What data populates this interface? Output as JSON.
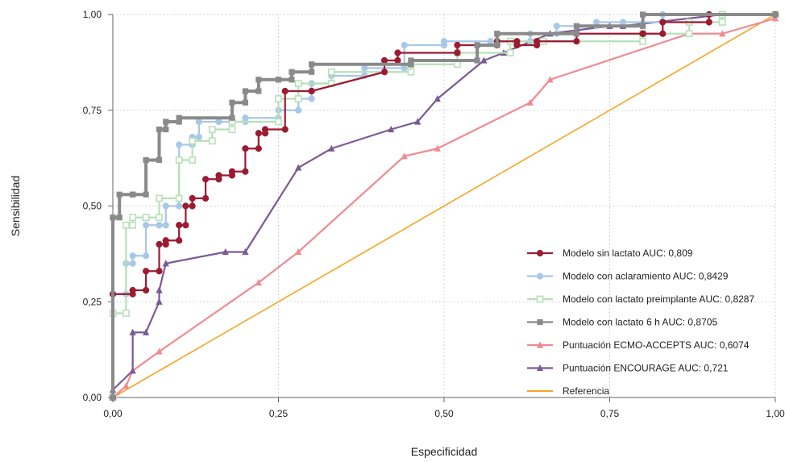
{
  "chart_data": {
    "type": "line",
    "xlabel": "Especificidad",
    "ylabel": "Sensibilidad",
    "xlim": [
      0,
      1
    ],
    "ylim": [
      0,
      1
    ],
    "x_ticks": [
      "0,00",
      "0,25",
      "0,50",
      "0,75",
      "1,00"
    ],
    "y_ticks": [
      "0,00",
      "0,25",
      "0,50",
      "0,75",
      "1,00"
    ],
    "grid": true,
    "legend_position": "bottom-right",
    "series": [
      {
        "name": "Modelo sin lactato AUC: 0,809",
        "color": "#9b1b30",
        "marker": "circle",
        "points": [
          [
            0,
            0
          ],
          [
            0,
            0.27
          ],
          [
            0.03,
            0.27
          ],
          [
            0.03,
            0.28
          ],
          [
            0.05,
            0.28
          ],
          [
            0.05,
            0.33
          ],
          [
            0.07,
            0.33
          ],
          [
            0.07,
            0.4
          ],
          [
            0.08,
            0.4
          ],
          [
            0.08,
            0.41
          ],
          [
            0.1,
            0.41
          ],
          [
            0.1,
            0.45
          ],
          [
            0.11,
            0.45
          ],
          [
            0.11,
            0.5
          ],
          [
            0.12,
            0.5
          ],
          [
            0.12,
            0.52
          ],
          [
            0.14,
            0.52
          ],
          [
            0.14,
            0.57
          ],
          [
            0.16,
            0.57
          ],
          [
            0.16,
            0.58
          ],
          [
            0.18,
            0.58
          ],
          [
            0.18,
            0.59
          ],
          [
            0.2,
            0.59
          ],
          [
            0.2,
            0.65
          ],
          [
            0.22,
            0.65
          ],
          [
            0.22,
            0.69
          ],
          [
            0.23,
            0.69
          ],
          [
            0.23,
            0.7
          ],
          [
            0.26,
            0.7
          ],
          [
            0.26,
            0.8
          ],
          [
            0.3,
            0.8
          ],
          [
            0.3,
            0.8
          ],
          [
            0.41,
            0.85
          ],
          [
            0.41,
            0.88
          ],
          [
            0.43,
            0.88
          ],
          [
            0.43,
            0.9
          ],
          [
            0.52,
            0.9
          ],
          [
            0.52,
            0.92
          ],
          [
            0.58,
            0.92
          ],
          [
            0.58,
            0.93
          ],
          [
            0.61,
            0.93
          ],
          [
            0.61,
            0.92
          ],
          [
            0.64,
            0.92
          ],
          [
            0.64,
            0.93
          ],
          [
            0.7,
            0.93
          ],
          [
            0.7,
            0.95
          ],
          [
            0.8,
            0.95
          ],
          [
            0.8,
            0.95
          ],
          [
            0.83,
            0.95
          ],
          [
            0.83,
            0.98
          ],
          [
            0.9,
            0.98
          ],
          [
            0.9,
            1
          ],
          [
            1,
            1
          ]
        ]
      },
      {
        "name": "Modelo con aclaramiento AUC: 0,8429",
        "color": "#a8c8e8",
        "marker": "circle",
        "points": [
          [
            0,
            0
          ],
          [
            0,
            0.27
          ],
          [
            0.02,
            0.27
          ],
          [
            0.02,
            0.35
          ],
          [
            0.03,
            0.35
          ],
          [
            0.03,
            0.37
          ],
          [
            0.05,
            0.37
          ],
          [
            0.05,
            0.45
          ],
          [
            0.07,
            0.45
          ],
          [
            0.07,
            0.45
          ],
          [
            0.08,
            0.45
          ],
          [
            0.08,
            0.5
          ],
          [
            0.1,
            0.5
          ],
          [
            0.1,
            0.66
          ],
          [
            0.12,
            0.66
          ],
          [
            0.12,
            0.68
          ],
          [
            0.13,
            0.68
          ],
          [
            0.13,
            0.72
          ],
          [
            0.16,
            0.72
          ],
          [
            0.16,
            0.72
          ],
          [
            0.2,
            0.72
          ],
          [
            0.2,
            0.73
          ],
          [
            0.25,
            0.73
          ],
          [
            0.25,
            0.75
          ],
          [
            0.28,
            0.75
          ],
          [
            0.28,
            0.78
          ],
          [
            0.3,
            0.78
          ],
          [
            0.3,
            0.82
          ],
          [
            0.33,
            0.82
          ],
          [
            0.33,
            0.84
          ],
          [
            0.38,
            0.84
          ],
          [
            0.38,
            0.86
          ],
          [
            0.44,
            0.86
          ],
          [
            0.44,
            0.92
          ],
          [
            0.5,
            0.92
          ],
          [
            0.5,
            0.93
          ],
          [
            0.57,
            0.93
          ],
          [
            0.57,
            0.93
          ],
          [
            0.63,
            0.93
          ],
          [
            0.63,
            0.95
          ],
          [
            0.67,
            0.95
          ],
          [
            0.67,
            0.97
          ],
          [
            0.73,
            0.97
          ],
          [
            0.73,
            0.98
          ],
          [
            0.77,
            0.98
          ],
          [
            0.77,
            0.98
          ],
          [
            0.83,
            0.98
          ],
          [
            0.83,
            1
          ],
          [
            1,
            1
          ]
        ]
      },
      {
        "name": "Modelo con lactato preimplante AUC: 0,8287",
        "color": "#b8e0b8",
        "marker": "square-open",
        "points": [
          [
            0,
            0
          ],
          [
            0,
            0.22
          ],
          [
            0.02,
            0.22
          ],
          [
            0.02,
            0.45
          ],
          [
            0.03,
            0.45
          ],
          [
            0.03,
            0.47
          ],
          [
            0.05,
            0.47
          ],
          [
            0.05,
            0.47
          ],
          [
            0.07,
            0.47
          ],
          [
            0.07,
            0.52
          ],
          [
            0.1,
            0.52
          ],
          [
            0.1,
            0.62
          ],
          [
            0.12,
            0.62
          ],
          [
            0.12,
            0.67
          ],
          [
            0.15,
            0.67
          ],
          [
            0.15,
            0.7
          ],
          [
            0.18,
            0.7
          ],
          [
            0.18,
            0.72
          ],
          [
            0.25,
            0.72
          ],
          [
            0.25,
            0.78
          ],
          [
            0.28,
            0.78
          ],
          [
            0.28,
            0.82
          ],
          [
            0.33,
            0.82
          ],
          [
            0.33,
            0.85
          ],
          [
            0.45,
            0.85
          ],
          [
            0.45,
            0.87
          ],
          [
            0.52,
            0.87
          ],
          [
            0.52,
            0.9
          ],
          [
            0.6,
            0.9
          ],
          [
            0.6,
            0.93
          ],
          [
            0.65,
            0.93
          ],
          [
            0.65,
            0.93
          ],
          [
            0.8,
            0.93
          ],
          [
            0.8,
            0.95
          ],
          [
            0.87,
            0.95
          ],
          [
            0.87,
            0.98
          ],
          [
            0.92,
            0.98
          ],
          [
            0.92,
            1
          ],
          [
            1,
            1
          ]
        ]
      },
      {
        "name": "Modelo con lactato 6 h AUC: 0,8705",
        "color": "#8a8a8a",
        "marker": "square",
        "points": [
          [
            0,
            0
          ],
          [
            0,
            0.47
          ],
          [
            0.01,
            0.47
          ],
          [
            0.01,
            0.53
          ],
          [
            0.03,
            0.53
          ],
          [
            0.03,
            0.53
          ],
          [
            0.05,
            0.53
          ],
          [
            0.05,
            0.62
          ],
          [
            0.07,
            0.62
          ],
          [
            0.07,
            0.7
          ],
          [
            0.08,
            0.7
          ],
          [
            0.08,
            0.72
          ],
          [
            0.1,
            0.72
          ],
          [
            0.1,
            0.73
          ],
          [
            0.18,
            0.73
          ],
          [
            0.18,
            0.77
          ],
          [
            0.2,
            0.77
          ],
          [
            0.2,
            0.8
          ],
          [
            0.22,
            0.8
          ],
          [
            0.22,
            0.83
          ],
          [
            0.25,
            0.83
          ],
          [
            0.25,
            0.83
          ],
          [
            0.27,
            0.83
          ],
          [
            0.27,
            0.85
          ],
          [
            0.3,
            0.85
          ],
          [
            0.3,
            0.87
          ],
          [
            0.45,
            0.87
          ],
          [
            0.45,
            0.88
          ],
          [
            0.55,
            0.88
          ],
          [
            0.55,
            0.92
          ],
          [
            0.58,
            0.92
          ],
          [
            0.58,
            0.95
          ],
          [
            0.7,
            0.95
          ],
          [
            0.7,
            0.97
          ],
          [
            0.8,
            0.97
          ],
          [
            0.8,
            1
          ],
          [
            1,
            1
          ]
        ]
      },
      {
        "name": "Puntuación ECMO-ACCEPTS AUC: 0,6074",
        "color": "#f08a90",
        "marker": "triangle",
        "points": [
          [
            0,
            0
          ],
          [
            0.02,
            0.03
          ],
          [
            0.03,
            0.07
          ],
          [
            0.07,
            0.12
          ],
          [
            0.22,
            0.3
          ],
          [
            0.28,
            0.38
          ],
          [
            0.44,
            0.63
          ],
          [
            0.49,
            0.65
          ],
          [
            0.63,
            0.77
          ],
          [
            0.66,
            0.83
          ],
          [
            0.87,
            0.95
          ],
          [
            0.92,
            0.95
          ],
          [
            1,
            0.99
          ]
        ]
      },
      {
        "name": "Puntuación ENCOURAGE AUC: 0,721",
        "color": "#7a5a95",
        "marker": "triangle",
        "points": [
          [
            0,
            0
          ],
          [
            0,
            0.02
          ],
          [
            0.03,
            0.07
          ],
          [
            0.03,
            0.17
          ],
          [
            0.05,
            0.17
          ],
          [
            0.07,
            0.25
          ],
          [
            0.07,
            0.28
          ],
          [
            0.08,
            0.35
          ],
          [
            0.17,
            0.38
          ],
          [
            0.2,
            0.38
          ],
          [
            0.28,
            0.6
          ],
          [
            0.33,
            0.65
          ],
          [
            0.42,
            0.7
          ],
          [
            0.46,
            0.72
          ],
          [
            0.49,
            0.78
          ],
          [
            0.56,
            0.88
          ],
          [
            0.59,
            0.9
          ],
          [
            0.66,
            0.95
          ],
          [
            0.75,
            0.97
          ],
          [
            0.77,
            0.97
          ],
          [
            0.92,
            1
          ],
          [
            1,
            1
          ]
        ]
      },
      {
        "name": "Referencia",
        "color": "#f5a623",
        "marker": "none",
        "points": [
          [
            0,
            0
          ],
          [
            1,
            1
          ]
        ]
      }
    ]
  }
}
